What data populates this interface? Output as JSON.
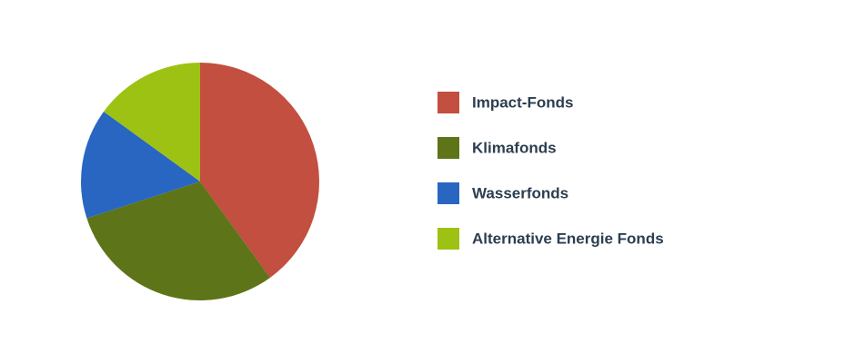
{
  "chart_data": {
    "type": "pie",
    "categories": [
      "Impact-Fonds",
      "Klimafonds",
      "Wasserfonds",
      "Alternative Energie Fonds"
    ],
    "values": [
      40,
      30,
      15,
      15
    ],
    "colors": [
      "#c24f3f",
      "#5e7418",
      "#2866c2",
      "#9dc213"
    ],
    "legend": "right"
  }
}
